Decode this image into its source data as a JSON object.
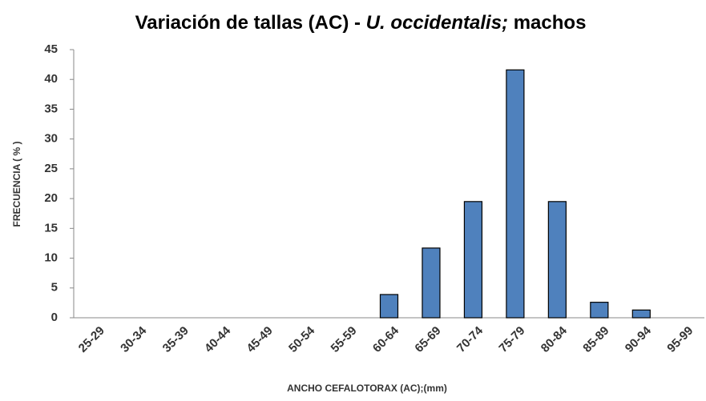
{
  "chart_data": {
    "type": "bar",
    "title": [
      "Variación de tallas (AC) - ",
      "U. occidentalis;",
      " machos"
    ],
    "x_label": "ANCHO CEFALOTORAX (AC);(mm)",
    "y_label": "FRECUENCIA ( % )",
    "categories": [
      "25-29",
      "30-34",
      "35-39",
      "40-44",
      "45-49",
      "50-54",
      "55-59",
      "60-64",
      "65-69",
      "70-74",
      "75-79",
      "80-84",
      "85-89",
      "90-94",
      "95-99"
    ],
    "values": [
      0,
      0,
      0,
      0,
      0,
      0,
      0,
      3.9,
      11.7,
      19.5,
      41.6,
      19.5,
      2.6,
      1.3,
      0
    ],
    "color": "#4f81bd",
    "ylim": [
      0,
      45
    ],
    "yticks": [
      0,
      5,
      10,
      15,
      20,
      25,
      30,
      35,
      40,
      45
    ],
    "grid": false
  }
}
